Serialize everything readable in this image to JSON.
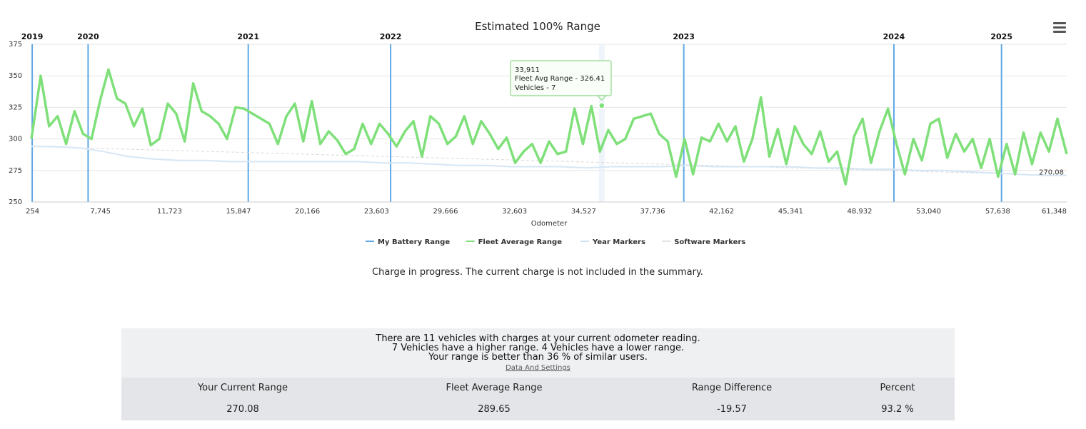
{
  "chart_data": {
    "type": "line",
    "title": "Estimated 100% Range",
    "xlabel": "Odometer",
    "ylabel": "",
    "xlim": [
      254,
      61348
    ],
    "ylim": [
      250,
      375
    ],
    "y_ticks": [
      250,
      275,
      300,
      325,
      350,
      375
    ],
    "x_tick_labels": [
      "254",
      "7,745",
      "11,723",
      "15,847",
      "20,166",
      "23,603",
      "29,666",
      "32,603",
      "34,527",
      "37,736",
      "42,162",
      "45,341",
      "48,932",
      "53,040",
      "57,638",
      "61,348"
    ],
    "year_markers": [
      {
        "label": "2019",
        "odometer": 300
      },
      {
        "label": "2020",
        "odometer": 3600
      },
      {
        "label": "2021",
        "odometer": 13050
      },
      {
        "label": "2022",
        "odometer": 21450
      },
      {
        "label": "2023",
        "odometer": 38750
      },
      {
        "label": "2024",
        "odometer": 51150
      },
      {
        "label": "2025",
        "odometer": 57500
      }
    ],
    "series": [
      {
        "name": "My Battery Range",
        "color": "#5fa8e6",
        "x": [
          254,
          1500,
          3000,
          4500,
          6000,
          7500,
          9000,
          10500,
          12000,
          13500,
          15000,
          16500,
          18000,
          19500,
          21000,
          22500,
          24000,
          25500,
          27000,
          28500,
          30000,
          31500,
          33000,
          34500,
          36000,
          37500,
          39000,
          40500,
          42000,
          43500,
          45000,
          46500,
          48000,
          49500,
          51000,
          52500,
          54000,
          55500,
          57000,
          58500,
          60000,
          61348
        ],
        "values": [
          294,
          294,
          293,
          290,
          286,
          284,
          283,
          283,
          282,
          282,
          282,
          282,
          282,
          282,
          281,
          281,
          280,
          279,
          279,
          278,
          278,
          278,
          277,
          278,
          278,
          278,
          279,
          278,
          278,
          278,
          278,
          277,
          277,
          276,
          276,
          275,
          275,
          274,
          273,
          272,
          271,
          271
        ]
      },
      {
        "name": "Fleet Average Range",
        "color": "#7fe07a",
        "x": [
          254,
          800,
          1300,
          1800,
          2300,
          2800,
          3300,
          3800,
          4300,
          4800,
          5300,
          5800,
          6300,
          6800,
          7300,
          7800,
          8300,
          8800,
          9300,
          9800,
          10300,
          10800,
          11300,
          11800,
          12300,
          12800,
          13300,
          13800,
          14300,
          14800,
          15300,
          15800,
          16300,
          16800,
          17300,
          17800,
          18300,
          18800,
          19300,
          19800,
          20300,
          20800,
          21300,
          21800,
          22300,
          22800,
          23300,
          23800,
          24300,
          24800,
          25300,
          25800,
          26300,
          26800,
          27300,
          27800,
          28300,
          28800,
          29300,
          29800,
          30300,
          30800,
          31300,
          31800,
          32300,
          32800,
          33300,
          33800,
          34300,
          34800,
          35300,
          35800,
          36300,
          36800,
          37300,
          37800,
          38300,
          38800,
          39300,
          39800,
          40300,
          40800,
          41300,
          41800,
          42300,
          42800,
          43300,
          43800,
          44300,
          44800,
          45300,
          45800,
          46300,
          46800,
          47300,
          47800,
          48300,
          48800,
          49300,
          49800,
          50300,
          50800,
          51300,
          51800,
          52300,
          52800,
          53300,
          53800,
          54300,
          54800,
          55300,
          55800,
          56300,
          56800,
          57300,
          57800,
          58300,
          58800,
          59300,
          59800,
          60300,
          60800,
          61348
        ],
        "values": [
          300,
          350,
          310,
          318,
          296,
          322,
          304,
          300,
          330,
          355,
          332,
          328,
          310,
          324,
          295,
          300,
          328,
          320,
          298,
          344,
          322,
          318,
          312,
          300,
          325,
          324,
          320,
          316,
          312,
          296,
          318,
          328,
          298,
          330,
          296,
          306,
          299,
          288,
          292,
          312,
          296,
          312,
          304,
          294,
          306,
          314,
          286,
          318,
          312,
          296,
          302,
          318,
          296,
          314,
          304,
          292,
          301,
          281,
          290,
          296,
          281,
          298,
          288,
          290,
          324,
          296,
          326,
          290,
          307,
          296,
          300,
          316,
          318,
          320,
          304,
          298,
          270,
          300,
          272,
          301,
          298,
          312,
          298,
          310,
          282,
          300,
          333,
          286,
          308,
          280,
          310,
          296,
          288,
          306,
          282,
          290,
          264,
          302,
          316,
          281,
          306,
          324,
          296,
          272,
          300,
          283,
          312,
          316,
          285,
          304,
          290,
          300,
          277,
          300,
          270,
          296,
          272,
          305,
          280,
          305,
          290,
          316,
          288
        ]
      }
    ],
    "legend": {
      "placement": "bottom-center",
      "items": [
        {
          "label": "My Battery Range",
          "color": "#5fa8e6",
          "disabled": false
        },
        {
          "label": "Fleet Average Range",
          "color": "#7fe07a",
          "disabled": false
        },
        {
          "label": "Year Markers",
          "color": "#cfe2f3",
          "disabled": false
        },
        {
          "label": "Software Markers",
          "color": "#dddddd",
          "disabled": true
        }
      ]
    },
    "end_label": "270.08",
    "tooltip": {
      "x": 33911,
      "y": 326.41,
      "line1": "33,911",
      "line2": "Fleet Avg Range - 326.41",
      "line3": "Vehicles - 7"
    },
    "grid": true
  },
  "notice": "Charge in progress. The current charge is not included in the summary.",
  "summary": {
    "line1": "There are 11 vehicles with charges at your current odometer reading.",
    "line2": "7 Vehicles have a higher range. 4 Vehicles have a lower range.",
    "line3": "Your range is better than 36 % of similar users.",
    "link": "Data And Settings"
  },
  "stats": {
    "current_range_label": "Your Current Range",
    "current_range_value": "270.08",
    "fleet_avg_label": "Fleet Average Range",
    "fleet_avg_value": "289.65",
    "diff_label": "Range Difference",
    "diff_value": "-19.57",
    "percent_label": "Percent",
    "percent_value": "93.2 %"
  }
}
